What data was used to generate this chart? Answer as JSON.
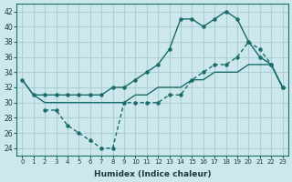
{
  "xlabel": "Humidex (Indice chaleur)",
  "bg_color": "#cce8ec",
  "grid_color": "#aad0d6",
  "line_color": "#1a6b6b",
  "x_ticks": [
    0,
    1,
    2,
    3,
    4,
    5,
    6,
    7,
    8,
    9,
    10,
    11,
    12,
    13,
    14,
    15,
    16,
    17,
    18,
    19,
    20,
    21,
    22,
    23
  ],
  "ylim": [
    23,
    43
  ],
  "xlim": [
    -0.5,
    23.5
  ],
  "line1_x": [
    0,
    1,
    2,
    3,
    4,
    5,
    6,
    7,
    8,
    9,
    10,
    11,
    12,
    13,
    14,
    15,
    16,
    17,
    18,
    19,
    20,
    21,
    22,
    23
  ],
  "line1_y": [
    33,
    31,
    31,
    31,
    31,
    31,
    31,
    31,
    32,
    32,
    33,
    34,
    35,
    37,
    41,
    41,
    40,
    41,
    42,
    41,
    38,
    36,
    35,
    32
  ],
  "line2_x": [
    0,
    1,
    2,
    3,
    4,
    5,
    6,
    7,
    8,
    9,
    10,
    11,
    12,
    13,
    14,
    15,
    16,
    17,
    18,
    19,
    20,
    21,
    22,
    23
  ],
  "line2_y": [
    33,
    31,
    30,
    30,
    30,
    30,
    30,
    30,
    30,
    30,
    31,
    31,
    32,
    32,
    32,
    33,
    33,
    34,
    34,
    34,
    35,
    35,
    35,
    32
  ],
  "line3_x": [
    2,
    3,
    4,
    5,
    6,
    7,
    8,
    9,
    10,
    11,
    12,
    13,
    14,
    15,
    16,
    17,
    18,
    19,
    20,
    21,
    22,
    23
  ],
  "line3_y": [
    29,
    29,
    27,
    26,
    25,
    24,
    24,
    30,
    30,
    30,
    30,
    31,
    31,
    33,
    34,
    35,
    35,
    36,
    38,
    37,
    35,
    32
  ]
}
